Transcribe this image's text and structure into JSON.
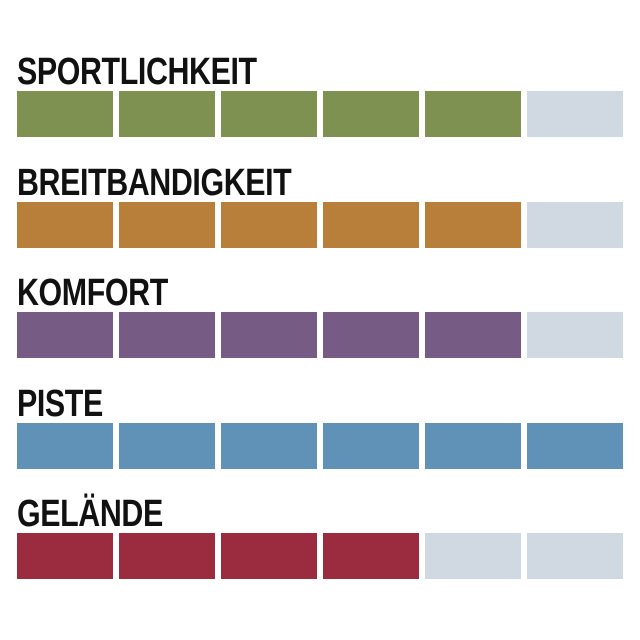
{
  "chart_data": {
    "type": "bar",
    "max_value": 6,
    "empty_color": "#d0d9e1",
    "categories": [
      "SPORTLICHKEIT",
      "BREITBANDIGKEIT",
      "KOMFORT",
      "PISTE",
      "GELÄNDE"
    ],
    "values": [
      5,
      5,
      5,
      6,
      4
    ],
    "colors": [
      "#7f9150",
      "#b87f3b",
      "#765b84",
      "#5f92b6",
      "#9b2b3e"
    ]
  }
}
